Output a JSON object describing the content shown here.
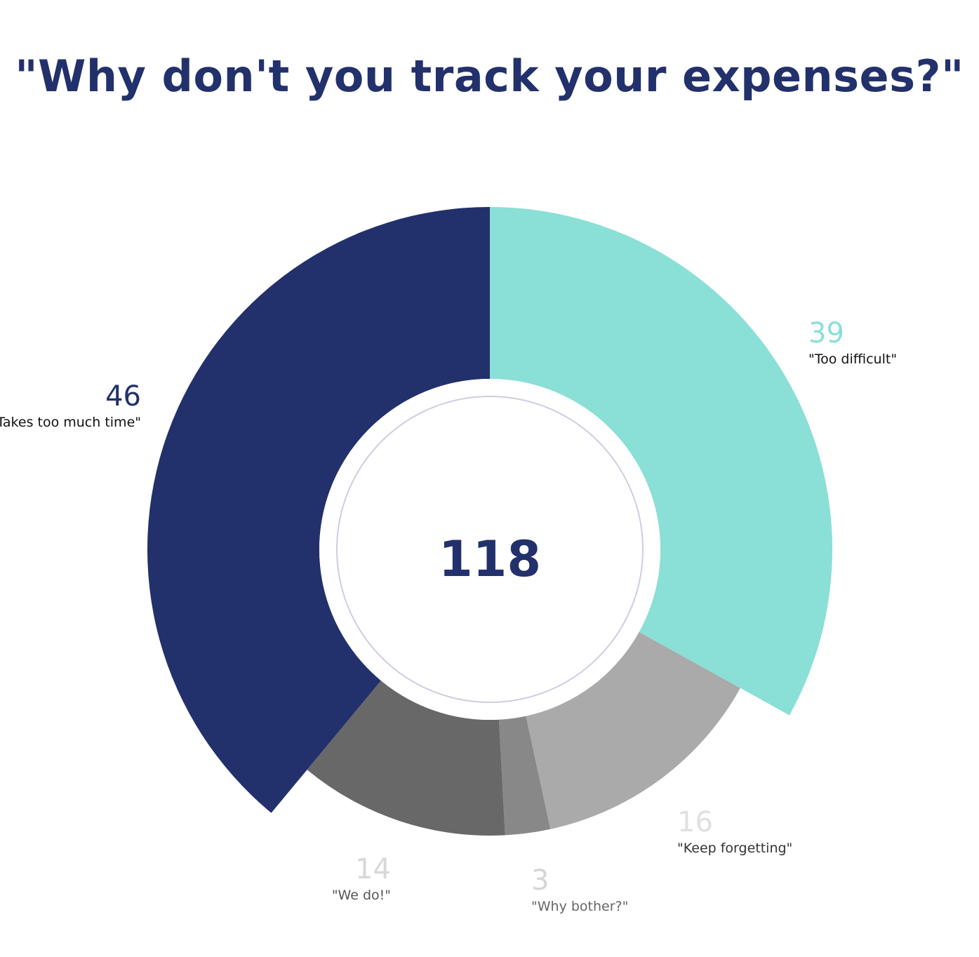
{
  "chart_data": {
    "type": "pie",
    "title": "\"Why don't you track your expenses?\"",
    "total": "118",
    "slices": [
      {
        "label": "\"Too difficult\"",
        "value": 39,
        "color": "#8adfd6",
        "value_color": "#8adfd6",
        "label_color": "#111111"
      },
      {
        "label": "\"Keep forgetting\"",
        "value": 16,
        "color": "#aaaaaa",
        "value_color": "#e0e0e0",
        "label_color": "#333333"
      },
      {
        "label": "\"Why bother?\"",
        "value": 3,
        "color": "#888888",
        "value_color": "#d5d5d5",
        "label_color": "#666666"
      },
      {
        "label": "\"We do!\"",
        "value": 14,
        "color": "#686868",
        "value_color": "#d8d8d8",
        "label_color": "#555555"
      },
      {
        "label": "\"Takes too much time\"",
        "value": 46,
        "color": "#22316b",
        "value_color": "#22316b",
        "label_color": "#111111"
      }
    ],
    "colors": {
      "title": "#22316b",
      "center_text": "#22316b",
      "center_ring": "#cfcde0"
    }
  }
}
